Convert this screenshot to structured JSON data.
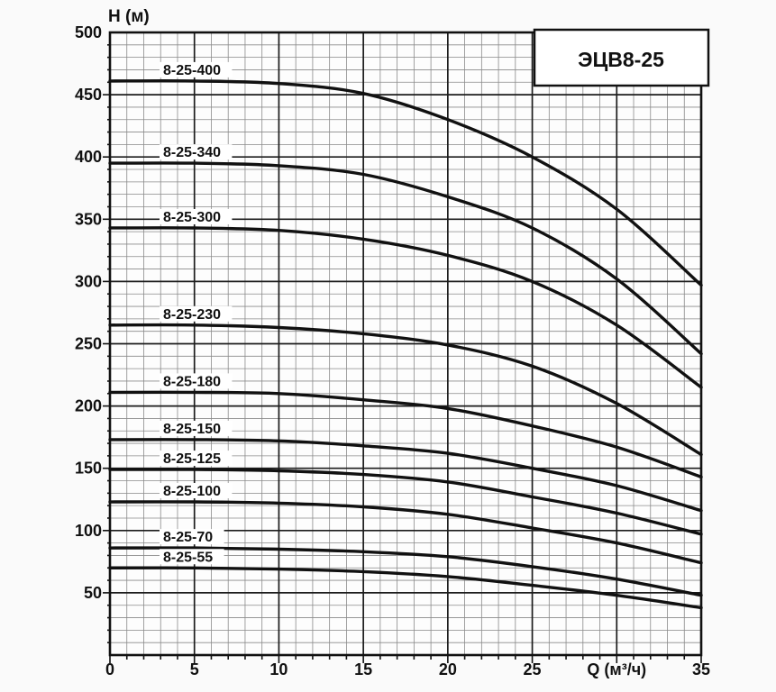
{
  "title_box": "ЭЦВ8-25",
  "axes": {
    "y_label": "H (м)",
    "x_label": "Q (м³/ч)",
    "x_label_at": 30,
    "y_ticks": [
      500,
      450,
      400,
      350,
      300,
      250,
      200,
      150,
      100,
      50
    ],
    "x_ticks": [
      0,
      5,
      10,
      15,
      20,
      25,
      35
    ],
    "x_minor_step": 1,
    "y_minor_step": 10,
    "x_major_step": 5,
    "y_major_step": 50
  },
  "chart_data": {
    "type": "line",
    "title": "ЭЦВ8-25",
    "xlabel": "Q (м³/ч)",
    "ylabel": "H (м)",
    "xlim": [
      0,
      35
    ],
    "ylim": [
      0,
      500
    ],
    "grid": "minor+major",
    "legend_position": "inline-labels-above-curves",
    "x": [
      0,
      5,
      10,
      15,
      20,
      25,
      30,
      35
    ],
    "series": [
      {
        "name": "8-25-400",
        "values": [
          461,
          461,
          459,
          451,
          430,
          400,
          358,
          297
        ]
      },
      {
        "name": "8-25-340",
        "values": [
          395,
          395,
          393,
          386,
          368,
          343,
          302,
          242
        ]
      },
      {
        "name": "8-25-300",
        "values": [
          343,
          343,
          341,
          334,
          321,
          300,
          265,
          215
        ]
      },
      {
        "name": "8-25-230",
        "values": [
          265,
          265,
          263,
          258,
          249,
          232,
          202,
          161
        ]
      },
      {
        "name": "8-25-180",
        "values": [
          211,
          211,
          210,
          205,
          198,
          184,
          167,
          143
        ]
      },
      {
        "name": "8-25-150",
        "values": [
          173,
          173,
          172,
          168,
          162,
          150,
          136,
          116
        ]
      },
      {
        "name": "8-25-125",
        "values": [
          149,
          149,
          148,
          145,
          139,
          127,
          114,
          97
        ]
      },
      {
        "name": "8-25-100",
        "values": [
          123,
          123,
          122,
          119,
          113,
          102,
          90,
          74
        ]
      },
      {
        "name": "8-25-70",
        "values": [
          86,
          86,
          85,
          83,
          79,
          71,
          61,
          48
        ]
      },
      {
        "name": "8-25-55",
        "values": [
          70,
          70,
          69,
          67,
          63,
          56,
          48,
          38
        ]
      }
    ]
  },
  "colors": {
    "background": "#fafafa",
    "plot_bg": "#fdfdfd",
    "grid_minor": "#8a8a8a",
    "grid_major": "#1c1c1c",
    "frame": "#111111",
    "curve": "#111111",
    "text": "#111111",
    "label_bg": "#ffffff",
    "title_box_bg": "#ffffff"
  }
}
